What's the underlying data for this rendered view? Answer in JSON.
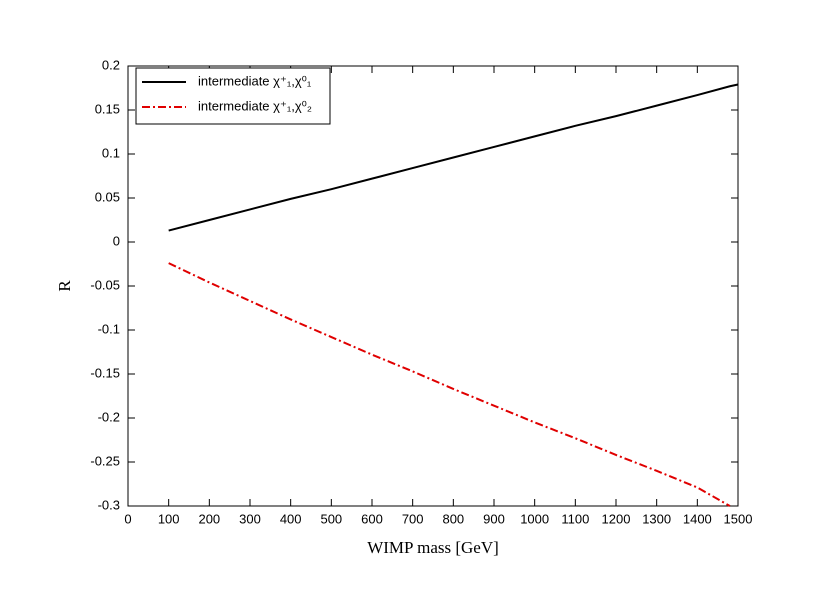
{
  "chart_data": {
    "type": "line",
    "x_label": "WIMP mass [GeV]",
    "y_label": "R",
    "x": [
      100,
      200,
      300,
      400,
      500,
      600,
      700,
      800,
      900,
      1000,
      1100,
      1200,
      1300,
      1400,
      1480,
      1500
    ],
    "series": [
      {
        "name": "intermediate χ⁺₁,χ⁰₁",
        "color": "#000000",
        "dash": "solid",
        "values": [
          0.013,
          0.025,
          0.037,
          0.049,
          0.06,
          0.072,
          0.084,
          0.096,
          0.108,
          0.12,
          0.132,
          0.143,
          0.155,
          0.167,
          0.177,
          0.179
        ]
      },
      {
        "name": "intermediate χ⁺₁,χ⁰₂",
        "color": "#e00000",
        "dash": "dashdot",
        "values": [
          -0.024,
          -0.046,
          -0.067,
          -0.088,
          -0.108,
          -0.128,
          -0.147,
          -0.167,
          -0.186,
          -0.205,
          -0.223,
          -0.242,
          -0.26,
          -0.279,
          -0.3,
          null
        ]
      }
    ],
    "xlim": [
      0,
      1500
    ],
    "xticks": [
      0,
      100,
      200,
      300,
      400,
      500,
      600,
      700,
      800,
      900,
      1000,
      1100,
      1200,
      1300,
      1400,
      1500
    ],
    "ylim": [
      -0.3,
      0.2
    ],
    "yticks": [
      -0.3,
      -0.25,
      -0.2,
      -0.15,
      -0.1,
      -0.05,
      0,
      0.05,
      0.1,
      0.15,
      0.2
    ],
    "legend": "top-left"
  }
}
